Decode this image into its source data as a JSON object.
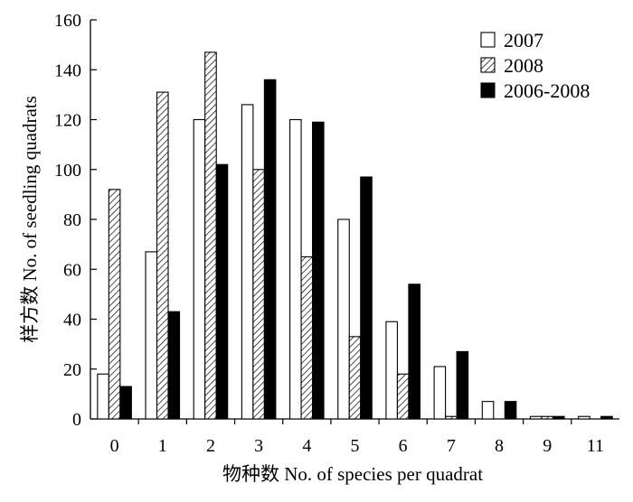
{
  "chart_data": {
    "type": "bar",
    "categories": [
      "0",
      "1",
      "2",
      "3",
      "4",
      "5",
      "6",
      "7",
      "8",
      "9",
      "11"
    ],
    "series": [
      {
        "name": "2007",
        "values": [
          18,
          67,
          120,
          126,
          120,
          80,
          39,
          21,
          7,
          1,
          1
        ],
        "fill": "white"
      },
      {
        "name": "2008",
        "values": [
          92,
          131,
          147,
          100,
          65,
          33,
          18,
          1,
          0,
          1,
          0
        ],
        "fill": "hatch"
      },
      {
        "name": "2006-2008",
        "values": [
          13,
          43,
          102,
          136,
          119,
          97,
          54,
          27,
          7,
          1,
          1
        ],
        "fill": "black"
      }
    ],
    "xlabel": "物种数  No. of species per quadrat",
    "ylabel": "样方数 No. of seedling quadrats",
    "ylim": [
      0,
      160
    ],
    "yticks": [
      0,
      20,
      40,
      60,
      80,
      100,
      120,
      140,
      160
    ],
    "legend_position": "top-right",
    "grid": false,
    "colors": {
      "bar_edge": "#000000",
      "black_fill": "#000000",
      "white_fill": "#ffffff"
    }
  }
}
